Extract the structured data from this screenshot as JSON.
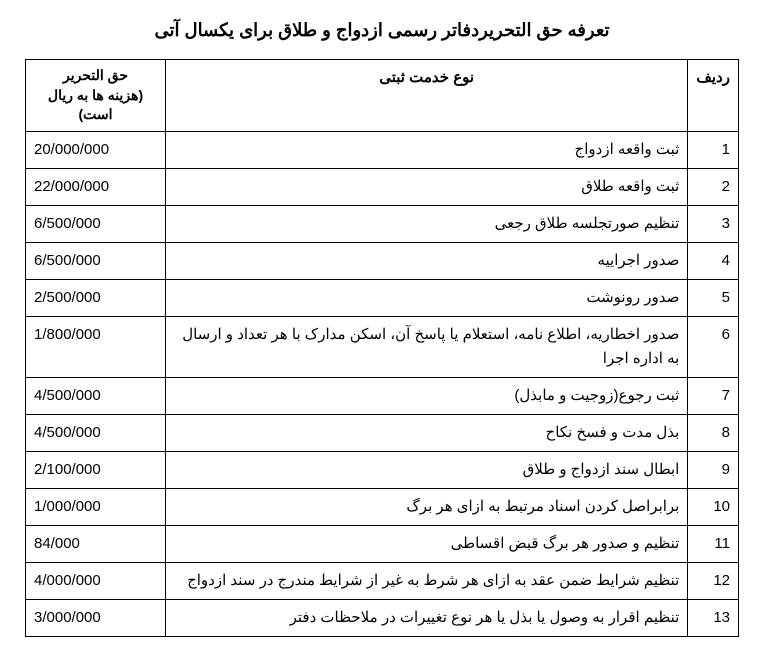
{
  "title": "تعرفه حق التحریردفاتر رسمی ازدواج و طلاق برای یکسال آتی",
  "headers": {
    "index": "ردیف",
    "service": "نوع خدمت ثبتی",
    "fee_line1": "حق التحریر",
    "fee_line2": "(هزینه ها به ریال است)"
  },
  "rows": [
    {
      "index": "1",
      "service": "ثبت واقعه ازدواج",
      "fee": "20/000/000"
    },
    {
      "index": "2",
      "service": "ثبت واقعه طلاق",
      "fee": "22/000/000"
    },
    {
      "index": "3",
      "service": "تنظیم صورتجلسه طلاق رجعی",
      "fee": "6/500/000"
    },
    {
      "index": "4",
      "service": "صدور اجراییه",
      "fee": "6/500/000"
    },
    {
      "index": "5",
      "service": "صدور رونوشت",
      "fee": "2/500/000"
    },
    {
      "index": "6",
      "service": "صدور اخطاریه، اطلاع نامه، استعلام یا پاسخ آن، اسکن مدارک با هر تعداد و ارسال به اداره اجرا",
      "fee": "1/800/000"
    },
    {
      "index": "7",
      "service": "ثبت رجوع(زوجیت و مابذل)",
      "fee": "4/500/000"
    },
    {
      "index": "8",
      "service": "بذل مدت و فسخ نکاح",
      "fee": "4/500/000"
    },
    {
      "index": "9",
      "service": "ابطال سند ازدواج و طلاق",
      "fee": "2/100/000"
    },
    {
      "index": "10",
      "service": "برابراصل کردن اسناد مرتبط به ازای هر برگ",
      "fee": "1/000/000"
    },
    {
      "index": "11",
      "service": "تنظیم و صدور هر برگ قبض اقساطی",
      "fee": "84/000"
    },
    {
      "index": "12",
      "service": "تنظیم شرایط ضمن عقد به ازای هر شرط به غیر از شرایط مندرج در سند ازدواج",
      "fee": "4/000/000"
    },
    {
      "index": "13",
      "service": "تنظیم اقرار به وصول یا بذل یا هر نوع تغییرات در ملاحظات دفتر",
      "fee": "3/000/000"
    }
  ]
}
